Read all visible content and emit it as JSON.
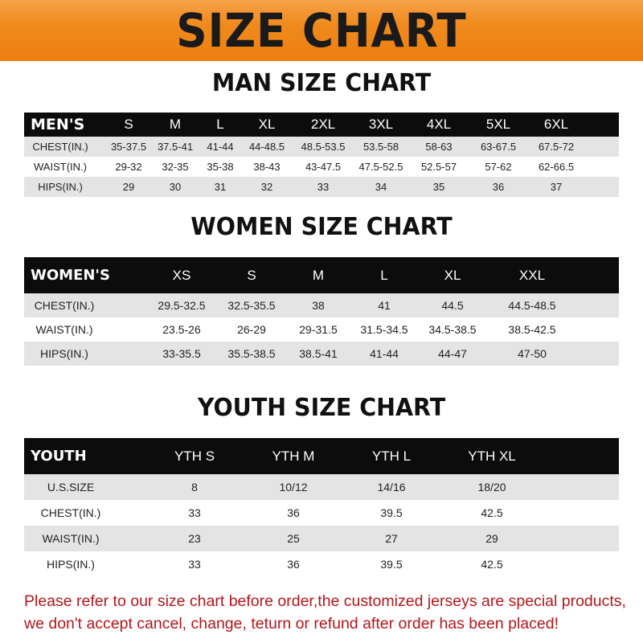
{
  "title": "SIZE CHART",
  "colors": {
    "banner": "#f08a1c",
    "header_row": "#0c0c0c",
    "notice_text": "#b5161b"
  },
  "men": {
    "title": "MAN SIZE CHART",
    "header": [
      "MEN'S",
      "S",
      "M",
      "L",
      "XL",
      "2XL",
      "3XL",
      "4XL",
      "5XL",
      "6XL"
    ],
    "rows": [
      [
        "CHEST(IN.)",
        "35-37.5",
        "37.5-41",
        "41-44",
        "44-48.5",
        "48.5-53.5",
        "53.5-58",
        "58-63",
        "63-67.5",
        "67.5-72"
      ],
      [
        "WAIST(IN.)",
        "29-32",
        "32-35",
        "35-38",
        "38-43",
        "43-47.5",
        "47.5-52.5",
        "52.5-57",
        "57-62",
        "62-66.5"
      ],
      [
        "HIPS(IN.)",
        "29",
        "30",
        "31",
        "32",
        "33",
        "34",
        "35",
        "36",
        "37"
      ]
    ]
  },
  "women": {
    "title": "WOMEN SIZE CHART",
    "header": [
      "WOMEN'S",
      "XS",
      "S",
      "M",
      "L",
      "XL",
      "XXL"
    ],
    "rows": [
      [
        "CHEST(IN.)",
        "29.5-32.5",
        "32.5-35.5",
        "38",
        "41",
        "44.5",
        "44.5-48.5"
      ],
      [
        "WAIST(IN.)",
        "23.5-26",
        "26-29",
        "29-31.5",
        "31.5-34.5",
        "34.5-38.5",
        "38.5-42.5"
      ],
      [
        "HIPS(IN.)",
        "33-35.5",
        "35.5-38.5",
        "38.5-41",
        "41-44",
        "44-47",
        "47-50"
      ]
    ]
  },
  "youth": {
    "title": "YOUTH SIZE CHART",
    "header": [
      "YOUTH",
      "YTH S",
      "YTH M",
      "YTH L",
      "YTH XL"
    ],
    "rows": [
      [
        "U.S.SIZE",
        "8",
        "10/12",
        "14/16",
        "18/20"
      ],
      [
        "CHEST(IN.)",
        "33",
        "36",
        "39.5",
        "42.5"
      ],
      [
        "WAIST(IN.)",
        "23",
        "25",
        "27",
        "29"
      ],
      [
        "HIPS(IN.)",
        "33",
        "36",
        "39.5",
        "42.5"
      ]
    ]
  },
  "notice": {
    "line1": "Please refer to our size chart before order,the customized jerseys are special products,",
    "line2": "we don't accept cancel, change, teturn or refund after order has been placed!"
  }
}
